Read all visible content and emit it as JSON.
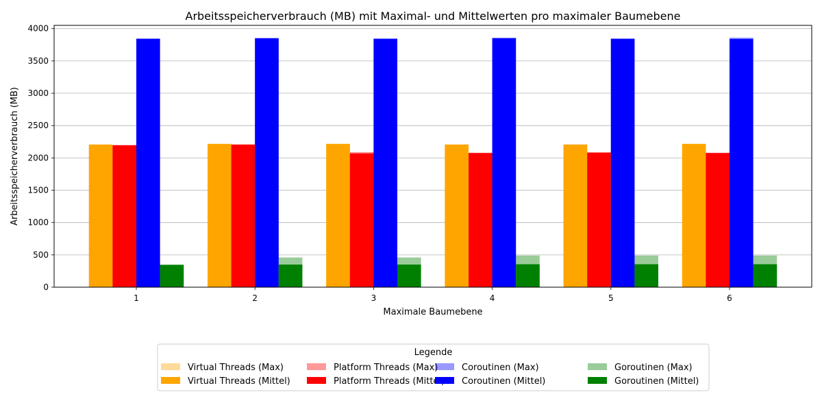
{
  "chart_data": {
    "type": "bar",
    "title": "Arbeitsspeicherverbrauch (MB) mit Maximal- und Mittelwerten pro maximaler Baumebene",
    "xlabel": "Maximale Baumebene",
    "ylabel": "Arbeitsspeicherverbrauch (MB)",
    "categories": [
      "1",
      "2",
      "3",
      "4",
      "5",
      "6"
    ],
    "ylim": [
      0,
      4050
    ],
    "yticks": [
      "0",
      "500",
      "1000",
      "1500",
      "2000",
      "2500",
      "3000",
      "3500",
      "4000"
    ],
    "grid": "y",
    "legend": {
      "title": "Legende",
      "placement": "bottom-center"
    },
    "series": [
      {
        "name": "Virtual Threads (Max)",
        "kind": "max",
        "color": "#ffa500",
        "opacity": 0.4,
        "values": [
          2210,
          2220,
          2220,
          2210,
          2210,
          2220
        ]
      },
      {
        "name": "Virtual Threads (Mittel)",
        "kind": "mean",
        "color": "#ffa500",
        "opacity": 1,
        "values": [
          2205,
          2215,
          2215,
          2205,
          2205,
          2215
        ]
      },
      {
        "name": "Platform Threads (Max)",
        "kind": "max",
        "color": "#ff0000",
        "opacity": 0.4,
        "values": [
          2200,
          2210,
          2090,
          2080,
          2090,
          2080
        ]
      },
      {
        "name": "Platform Threads (Mittel)",
        "kind": "mean",
        "color": "#ff0000",
        "opacity": 1,
        "values": [
          2195,
          2205,
          2070,
          2075,
          2080,
          2075
        ]
      },
      {
        "name": "Coroutinen (Max)",
        "kind": "max",
        "color": "#0000ff",
        "opacity": 0.4,
        "values": [
          3850,
          3855,
          3850,
          3860,
          3850,
          3860
        ]
      },
      {
        "name": "Coroutinen (Mittel)",
        "kind": "mean",
        "color": "#0000ff",
        "opacity": 1,
        "values": [
          3840,
          3850,
          3840,
          3850,
          3840,
          3840
        ]
      },
      {
        "name": "Goroutinen (Max)",
        "kind": "max",
        "color": "#008000",
        "opacity": 0.4,
        "values": [
          350,
          460,
          460,
          490,
          490,
          490
        ]
      },
      {
        "name": "Goroutinen (Mittel)",
        "kind": "mean",
        "color": "#008000",
        "opacity": 1,
        "values": [
          345,
          350,
          350,
          355,
          355,
          355
        ]
      }
    ]
  }
}
